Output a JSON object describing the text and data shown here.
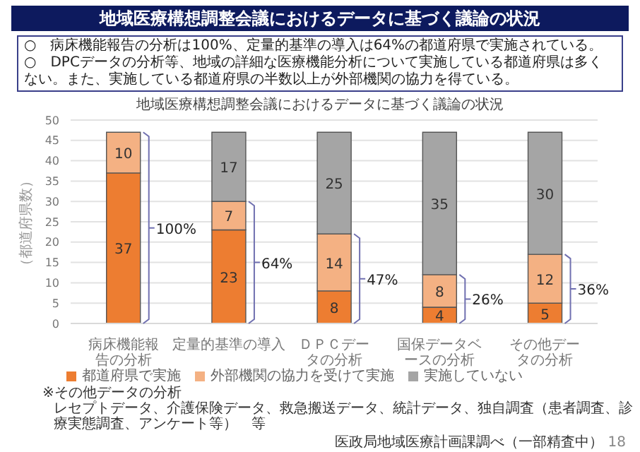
{
  "chart_data": {
    "type": "bar",
    "stacked": true,
    "title": "地域医療構想調整会議におけるデータに基づく議論の状況",
    "ylabel": "（都道府県数）",
    "categories": [
      "病床機能報告の分析",
      "定量的基準の導入",
      "ＤＰＣデータの分析",
      "国保データベースの分析",
      "その他データの分析"
    ],
    "series": [
      {
        "name": "都道府県で実施",
        "color": "#ed7d31",
        "values": [
          37,
          23,
          8,
          4,
          5
        ]
      },
      {
        "name": "外部機関の協力を受けて実施",
        "color": "#f4b183",
        "values": [
          10,
          7,
          14,
          8,
          12
        ]
      },
      {
        "name": "実施していない",
        "color": "#a5a5a5",
        "values": [
          null,
          17,
          25,
          35,
          30
        ]
      }
    ],
    "ylim": [
      0,
      50
    ],
    "yticks": [
      0,
      5,
      10,
      15,
      20,
      25,
      30,
      35,
      40,
      45,
      50
    ],
    "grid": "y",
    "legend": "bottom",
    "data_labels": true,
    "annotations": [
      "地域医療構想調整会議におけるデータに基づく議論の状況",
      "○　病床機能報告の分析は100%、定量的基準の導入は64%の都道府県で実施されている。",
      "○　DPCデータの分析等、地域の詳細な医療機能分析について実施している都道府県は多くない。また、実施している都道府県の半数以上が外部機関の協力を得ている。",
      "100%",
      "64%",
      "47%",
      "26%",
      "36%",
      "※その他データの分析",
      "レセプトデータ、介護保険データ、救急搬送データ、統計データ、独自調査（患者調査、診療実態調査、アンケート等）　等",
      "医政局地域医療計画課調べ（一部精査中）",
      "18"
    ]
  }
}
